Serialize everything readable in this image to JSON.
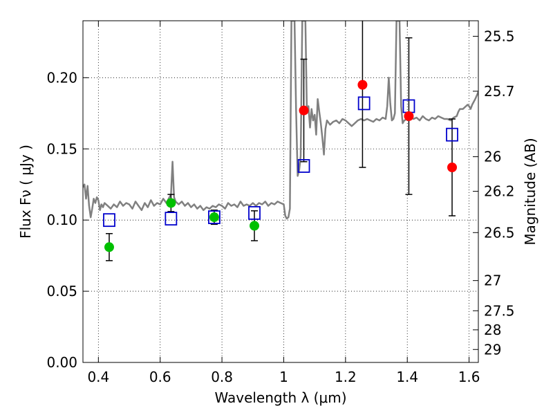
{
  "chart_data": {
    "type": "scatter",
    "title": "",
    "xlabel": "Wavelength  λ (μm)",
    "ylabel": "Flux  Fν  ( μJy )",
    "y2label": "Magnitude (AB)",
    "xlim": [
      0.35,
      1.63
    ],
    "ylim": [
      0.0,
      0.24
    ],
    "grid": true,
    "x_ticks": [
      0.4,
      0.6,
      0.8,
      1.0,
      1.2,
      1.4,
      1.6
    ],
    "x_tick_labels": [
      "0.4",
      "0.6",
      "0.8",
      "1",
      "1.2",
      "1.4",
      "1.6"
    ],
    "y_ticks": [
      0.0,
      0.05,
      0.1,
      0.15,
      0.2
    ],
    "y_tick_labels": [
      "0.00",
      "0.05",
      "0.10",
      "0.15",
      "0.20"
    ],
    "y2_ticks": [
      {
        "label": "25.5",
        "flux": 0.2291
      },
      {
        "label": "25.7",
        "flux": 0.1905
      },
      {
        "label": "26",
        "flux": 0.1445
      },
      {
        "label": "26.2",
        "flux": 0.1202
      },
      {
        "label": "26.5",
        "flux": 0.0912
      },
      {
        "label": "27",
        "flux": 0.0575
      },
      {
        "label": "27.5",
        "flux": 0.0363
      },
      {
        "label": "28",
        "flux": 0.0229
      },
      {
        "label": "29",
        "flux": 0.0091
      }
    ],
    "colors": {
      "model_line": "#808080",
      "hst_points": "#00c000",
      "ir_points": "#ff0000",
      "model_boxes": "#0000cc",
      "error_bars": "#000000"
    },
    "series": [
      {
        "marker": "circle",
        "color": "#00c000",
        "points": [
          {
            "x": 0.435,
            "y": 0.081,
            "err": 0.0095
          },
          {
            "x": 0.635,
            "y": 0.112,
            "err": 0.006
          },
          {
            "x": 0.775,
            "y": 0.102,
            "err": 0.005
          },
          {
            "x": 0.905,
            "y": 0.096,
            "err": 0.0105
          }
        ]
      },
      {
        "marker": "circle",
        "color": "#ff0000",
        "points": [
          {
            "x": 1.065,
            "y": 0.177,
            "err": 0.036
          },
          {
            "x": 1.255,
            "y": 0.195,
            "err": 0.058
          },
          {
            "x": 1.405,
            "y": 0.173,
            "err": 0.055
          },
          {
            "x": 1.545,
            "y": 0.137,
            "err": 0.034
          }
        ]
      },
      {
        "marker": "square",
        "color": "#0000cc",
        "points": [
          {
            "x": 0.435,
            "y": 0.1
          },
          {
            "x": 0.635,
            "y": 0.101
          },
          {
            "x": 0.775,
            "y": 0.102
          },
          {
            "x": 0.905,
            "y": 0.105
          },
          {
            "x": 1.065,
            "y": 0.138
          },
          {
            "x": 1.26,
            "y": 0.182
          },
          {
            "x": 1.405,
            "y": 0.18
          },
          {
            "x": 1.545,
            "y": 0.16
          }
        ]
      },
      {
        "marker": "line",
        "color": "#808080",
        "points": [
          [
            0.35,
            0.123
          ],
          [
            0.355,
            0.125
          ],
          [
            0.36,
            0.115
          ],
          [
            0.365,
            0.124
          ],
          [
            0.37,
            0.11
          ],
          [
            0.375,
            0.102
          ],
          [
            0.38,
            0.108
          ],
          [
            0.385,
            0.115
          ],
          [
            0.39,
            0.112
          ],
          [
            0.395,
            0.116
          ],
          [
            0.4,
            0.114
          ],
          [
            0.405,
            0.107
          ],
          [
            0.41,
            0.111
          ],
          [
            0.415,
            0.109
          ],
          [
            0.42,
            0.112
          ],
          [
            0.43,
            0.11
          ],
          [
            0.44,
            0.108
          ],
          [
            0.45,
            0.111
          ],
          [
            0.46,
            0.109
          ],
          [
            0.47,
            0.113
          ],
          [
            0.48,
            0.11
          ],
          [
            0.49,
            0.112
          ],
          [
            0.5,
            0.111
          ],
          [
            0.51,
            0.108
          ],
          [
            0.52,
            0.113
          ],
          [
            0.53,
            0.11
          ],
          [
            0.54,
            0.107
          ],
          [
            0.55,
            0.112
          ],
          [
            0.56,
            0.109
          ],
          [
            0.57,
            0.114
          ],
          [
            0.58,
            0.11
          ],
          [
            0.59,
            0.112
          ],
          [
            0.6,
            0.111
          ],
          [
            0.61,
            0.115
          ],
          [
            0.62,
            0.112
          ],
          [
            0.63,
            0.116
          ],
          [
            0.635,
            0.118
          ],
          [
            0.64,
            0.141
          ],
          [
            0.645,
            0.116
          ],
          [
            0.65,
            0.113
          ],
          [
            0.66,
            0.111
          ],
          [
            0.67,
            0.113
          ],
          [
            0.68,
            0.11
          ],
          [
            0.69,
            0.112
          ],
          [
            0.7,
            0.109
          ],
          [
            0.71,
            0.111
          ],
          [
            0.72,
            0.108
          ],
          [
            0.73,
            0.11
          ],
          [
            0.74,
            0.107
          ],
          [
            0.75,
            0.109
          ],
          [
            0.76,
            0.108
          ],
          [
            0.77,
            0.11
          ],
          [
            0.78,
            0.109
          ],
          [
            0.79,
            0.111
          ],
          [
            0.8,
            0.11
          ],
          [
            0.81,
            0.108
          ],
          [
            0.82,
            0.112
          ],
          [
            0.83,
            0.11
          ],
          [
            0.84,
            0.111
          ],
          [
            0.85,
            0.109
          ],
          [
            0.86,
            0.113
          ],
          [
            0.87,
            0.11
          ],
          [
            0.88,
            0.111
          ],
          [
            0.89,
            0.11
          ],
          [
            0.9,
            0.112
          ],
          [
            0.91,
            0.11
          ],
          [
            0.92,
            0.112
          ],
          [
            0.93,
            0.111
          ],
          [
            0.94,
            0.113
          ],
          [
            0.95,
            0.11
          ],
          [
            0.96,
            0.112
          ],
          [
            0.97,
            0.111
          ],
          [
            0.98,
            0.113
          ],
          [
            0.99,
            0.112
          ],
          [
            1.0,
            0.111
          ],
          [
            1.005,
            0.103
          ],
          [
            1.01,
            0.101
          ],
          [
            1.015,
            0.102
          ],
          [
            1.02,
            0.108
          ],
          [
            1.025,
            0.24
          ],
          [
            1.035,
            0.24
          ],
          [
            1.04,
            0.178
          ],
          [
            1.045,
            0.131
          ],
          [
            1.05,
            0.135
          ],
          [
            1.055,
            0.145
          ],
          [
            1.06,
            0.24
          ],
          [
            1.07,
            0.24
          ],
          [
            1.075,
            0.175
          ],
          [
            1.08,
            0.18
          ],
          [
            1.085,
            0.165
          ],
          [
            1.09,
            0.178
          ],
          [
            1.095,
            0.17
          ],
          [
            1.1,
            0.174
          ],
          [
            1.105,
            0.16
          ],
          [
            1.11,
            0.185
          ],
          [
            1.115,
            0.176
          ],
          [
            1.12,
            0.168
          ],
          [
            1.125,
            0.158
          ],
          [
            1.13,
            0.146
          ],
          [
            1.135,
            0.164
          ],
          [
            1.14,
            0.17
          ],
          [
            1.15,
            0.167
          ],
          [
            1.16,
            0.169
          ],
          [
            1.17,
            0.17
          ],
          [
            1.18,
            0.168
          ],
          [
            1.19,
            0.171
          ],
          [
            1.2,
            0.17
          ],
          [
            1.21,
            0.168
          ],
          [
            1.22,
            0.166
          ],
          [
            1.23,
            0.168
          ],
          [
            1.24,
            0.17
          ],
          [
            1.25,
            0.171
          ],
          [
            1.26,
            0.17
          ],
          [
            1.27,
            0.171
          ],
          [
            1.28,
            0.17
          ],
          [
            1.29,
            0.169
          ],
          [
            1.3,
            0.171
          ],
          [
            1.31,
            0.17
          ],
          [
            1.32,
            0.172
          ],
          [
            1.33,
            0.171
          ],
          [
            1.335,
            0.18
          ],
          [
            1.34,
            0.2
          ],
          [
            1.345,
            0.182
          ],
          [
            1.35,
            0.17
          ],
          [
            1.355,
            0.171
          ],
          [
            1.36,
            0.175
          ],
          [
            1.365,
            0.24
          ],
          [
            1.375,
            0.24
          ],
          [
            1.38,
            0.18
          ],
          [
            1.385,
            0.168
          ],
          [
            1.39,
            0.17
          ],
          [
            1.4,
            0.171
          ],
          [
            1.41,
            0.173
          ],
          [
            1.42,
            0.171
          ],
          [
            1.43,
            0.172
          ],
          [
            1.44,
            0.17
          ],
          [
            1.45,
            0.173
          ],
          [
            1.46,
            0.171
          ],
          [
            1.47,
            0.17
          ],
          [
            1.48,
            0.172
          ],
          [
            1.49,
            0.171
          ],
          [
            1.5,
            0.173
          ],
          [
            1.51,
            0.172
          ],
          [
            1.52,
            0.171
          ],
          [
            1.53,
            0.171
          ],
          [
            1.54,
            0.17
          ],
          [
            1.55,
            0.172
          ],
          [
            1.56,
            0.173
          ],
          [
            1.565,
            0.176
          ],
          [
            1.57,
            0.178
          ],
          [
            1.58,
            0.178
          ],
          [
            1.59,
            0.18
          ],
          [
            1.595,
            0.181
          ],
          [
            1.6,
            0.18
          ],
          [
            1.605,
            0.178
          ],
          [
            1.61,
            0.181
          ],
          [
            1.62,
            0.185
          ],
          [
            1.63,
            0.19
          ]
        ]
      }
    ]
  }
}
